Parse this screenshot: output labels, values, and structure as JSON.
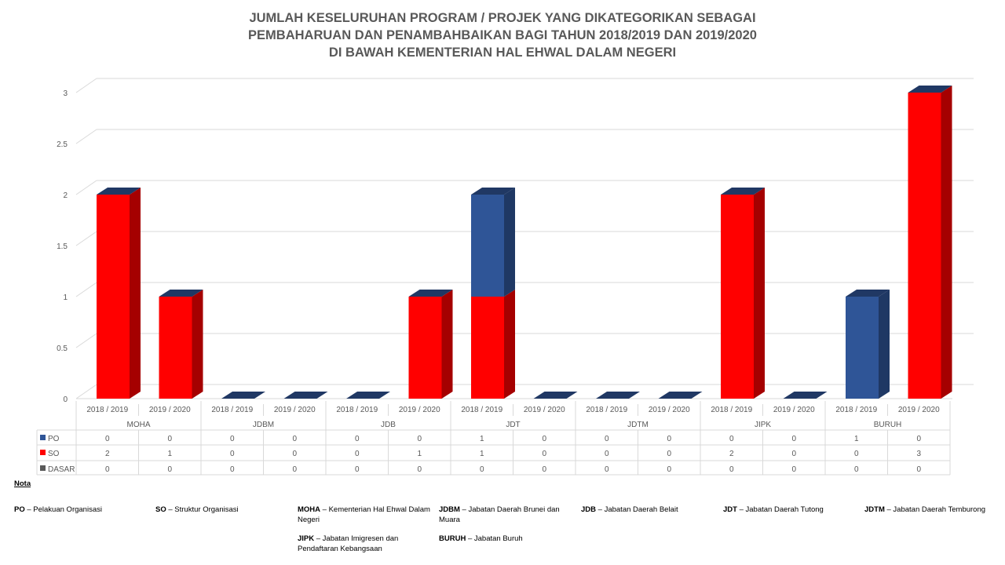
{
  "chart_data": {
    "type": "bar",
    "stacked": true,
    "title_lines": [
      "JUMLAH KESELURUHAN PROGRAM / PROJEK YANG DIKATEGORIKAN SEBAGAI",
      "PEMBAHARUAN DAN PENAMBAHBAIKAN BAGI TAHUN 2018/2019 DAN 2019/2020",
      "DI BAWAH KEMENTERIAN HAL EHWAL DALAM NEGERI"
    ],
    "groups": [
      "MOHA",
      "JDBM",
      "JDB",
      "JDT",
      "JDTM",
      "JIPK",
      "BURUH"
    ],
    "periods": [
      "2018 / 2019",
      "2019 / 2020"
    ],
    "ylim": [
      0,
      3
    ],
    "yticks": [
      "0",
      "0.5",
      "1",
      "1.5",
      "2",
      "2.5",
      "3"
    ],
    "grid": true,
    "legend": "data-table",
    "series": [
      {
        "name": "PO",
        "color": "#2F5597",
        "values": [
          0,
          0,
          0,
          0,
          0,
          0,
          1,
          0,
          0,
          0,
          0,
          0,
          1,
          0
        ]
      },
      {
        "name": "SO",
        "color": "#FF0000",
        "values": [
          2,
          1,
          0,
          0,
          0,
          1,
          1,
          0,
          0,
          0,
          2,
          0,
          0,
          3
        ]
      },
      {
        "name": "DASAR",
        "color": "#595959",
        "values": [
          0,
          0,
          0,
          0,
          0,
          0,
          0,
          0,
          0,
          0,
          0,
          0,
          0,
          0
        ]
      }
    ]
  },
  "notes": {
    "heading": "Nota",
    "items": [
      {
        "abbr": "PO",
        "text": "Pelakuan Organisasi"
      },
      {
        "abbr": "SO",
        "text": "Struktur Organisasi"
      },
      {
        "abbr": "MOHA",
        "text": "Kementerian Hal Ehwal Dalam Negeri"
      },
      {
        "abbr": "JDBM",
        "text": "Jabatan Daerah Brunei dan Muara"
      },
      {
        "abbr": "JDB",
        "text": "Jabatan Daerah Belait"
      },
      {
        "abbr": "JDT",
        "text": "Jabatan Daerah Tutong"
      },
      {
        "abbr": "JDTM",
        "text": "Jabatan Daerah Temburong"
      },
      {
        "abbr": "JIPK",
        "text": "Jabatan Imigresen dan Pendaftaran Kebangsaan"
      },
      {
        "abbr": "BURUH",
        "text": "Jabatan Buruh"
      }
    ]
  }
}
